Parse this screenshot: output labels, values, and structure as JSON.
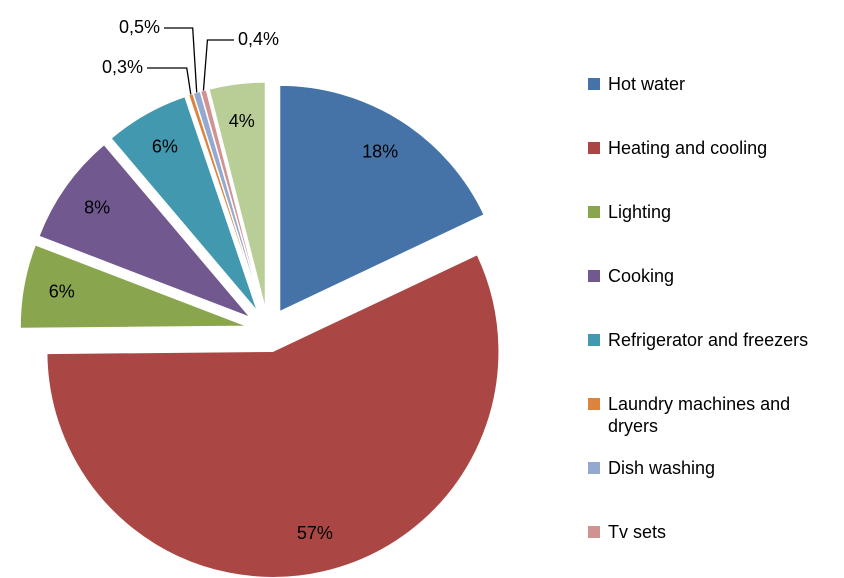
{
  "chart_data": {
    "type": "pie",
    "categories": [
      "Hot water",
      "Heating and cooling",
      "Lighting",
      "Cooking",
      "Refrigerator and freezers",
      "Laundry machines and dryers",
      "Dish washing",
      "Tv sets",
      null
    ],
    "values": [
      18,
      57,
      6,
      8,
      6,
      0.3,
      0.5,
      0.4,
      4
    ],
    "value_labels": [
      "18%",
      "57%",
      "6%",
      "8%",
      "6%",
      "0,3%",
      "0,5%",
      "0,4%",
      "4%"
    ],
    "colors": [
      "#4572a7",
      "#aa4643",
      "#89a54e",
      "#71588f",
      "#4198af",
      "#db843d",
      "#93a9cf",
      "#d19392",
      "#b9cd96"
    ],
    "legend": "right"
  }
}
